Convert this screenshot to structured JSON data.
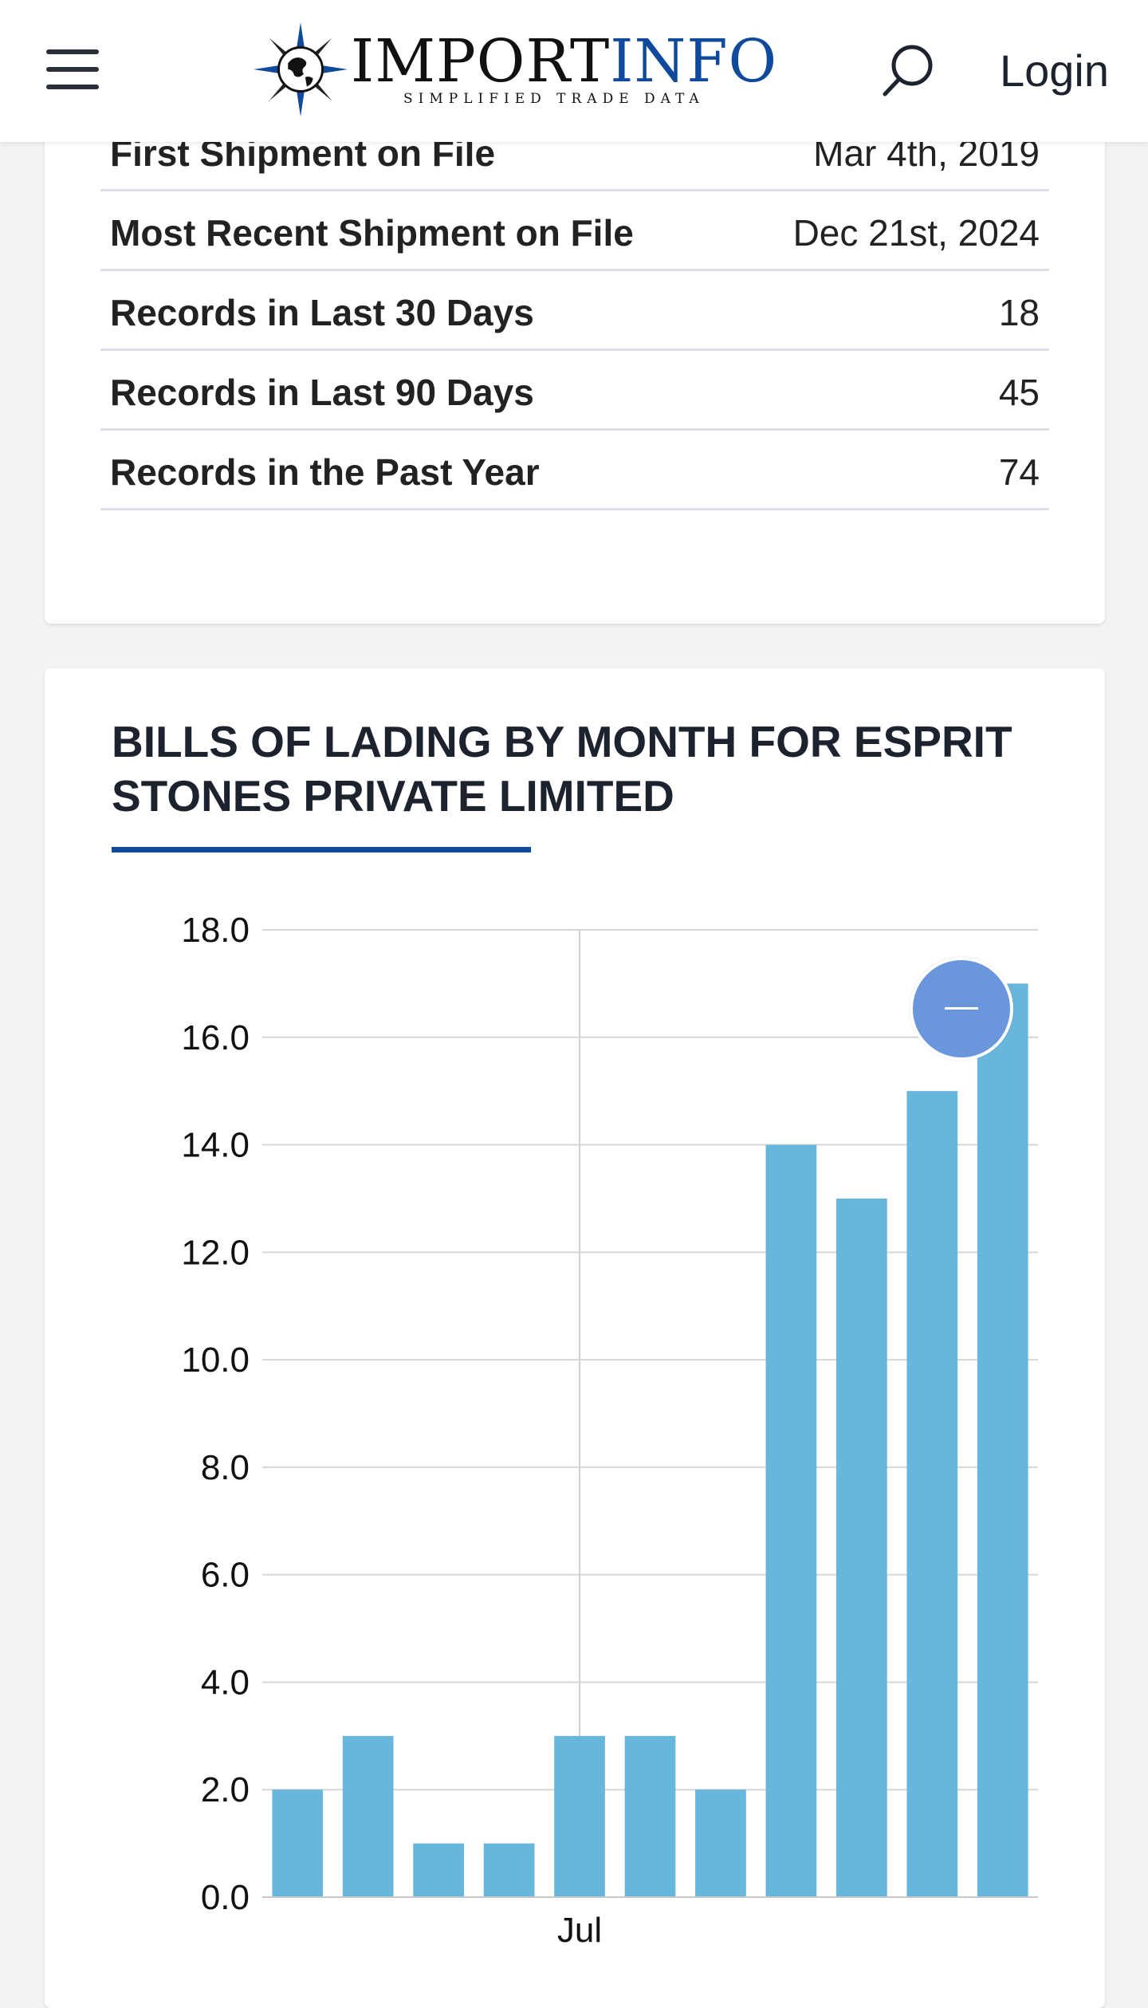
{
  "header": {
    "logo_text_1": "IMPORT",
    "logo_text_2": "INFO",
    "logo_tagline": "SIMPLIFIED TRADE DATA",
    "login_label": "Login",
    "icons": [
      "menu-icon",
      "globe-compass-icon",
      "search-icon"
    ],
    "brand_color": "#0f4a9c"
  },
  "stats": [
    {
      "label": "First Shipment on File",
      "value": "Mar 4th, 2019"
    },
    {
      "label": "Most Recent Shipment on File",
      "value": "Dec 21st, 2024"
    },
    {
      "label": "Records in Last 30 Days",
      "value": "18"
    },
    {
      "label": "Records in Last 90 Days",
      "value": "45"
    },
    {
      "label": "Records in the Past Year",
      "value": "74"
    }
  ],
  "chart": {
    "title": "BILLS OF LADING BY MONTH FOR ESPRIT STONES PRIVATE LIMITED",
    "collapse_icon": "minus-icon"
  },
  "chart_data": {
    "type": "bar",
    "values": [
      2,
      3,
      1,
      1,
      3,
      3,
      2,
      14,
      13,
      15,
      17
    ],
    "ylim": [
      0,
      18
    ],
    "yticks": [
      "0.0",
      "2.0",
      "4.0",
      "6.0",
      "8.0",
      "10.0",
      "12.0",
      "14.0",
      "16.0",
      "18.0"
    ],
    "xtick_label": "Jul",
    "xtick_index": 4.5,
    "grid": true,
    "bar_color": "#67b6dc",
    "title": "",
    "xlabel": "",
    "ylabel": ""
  }
}
